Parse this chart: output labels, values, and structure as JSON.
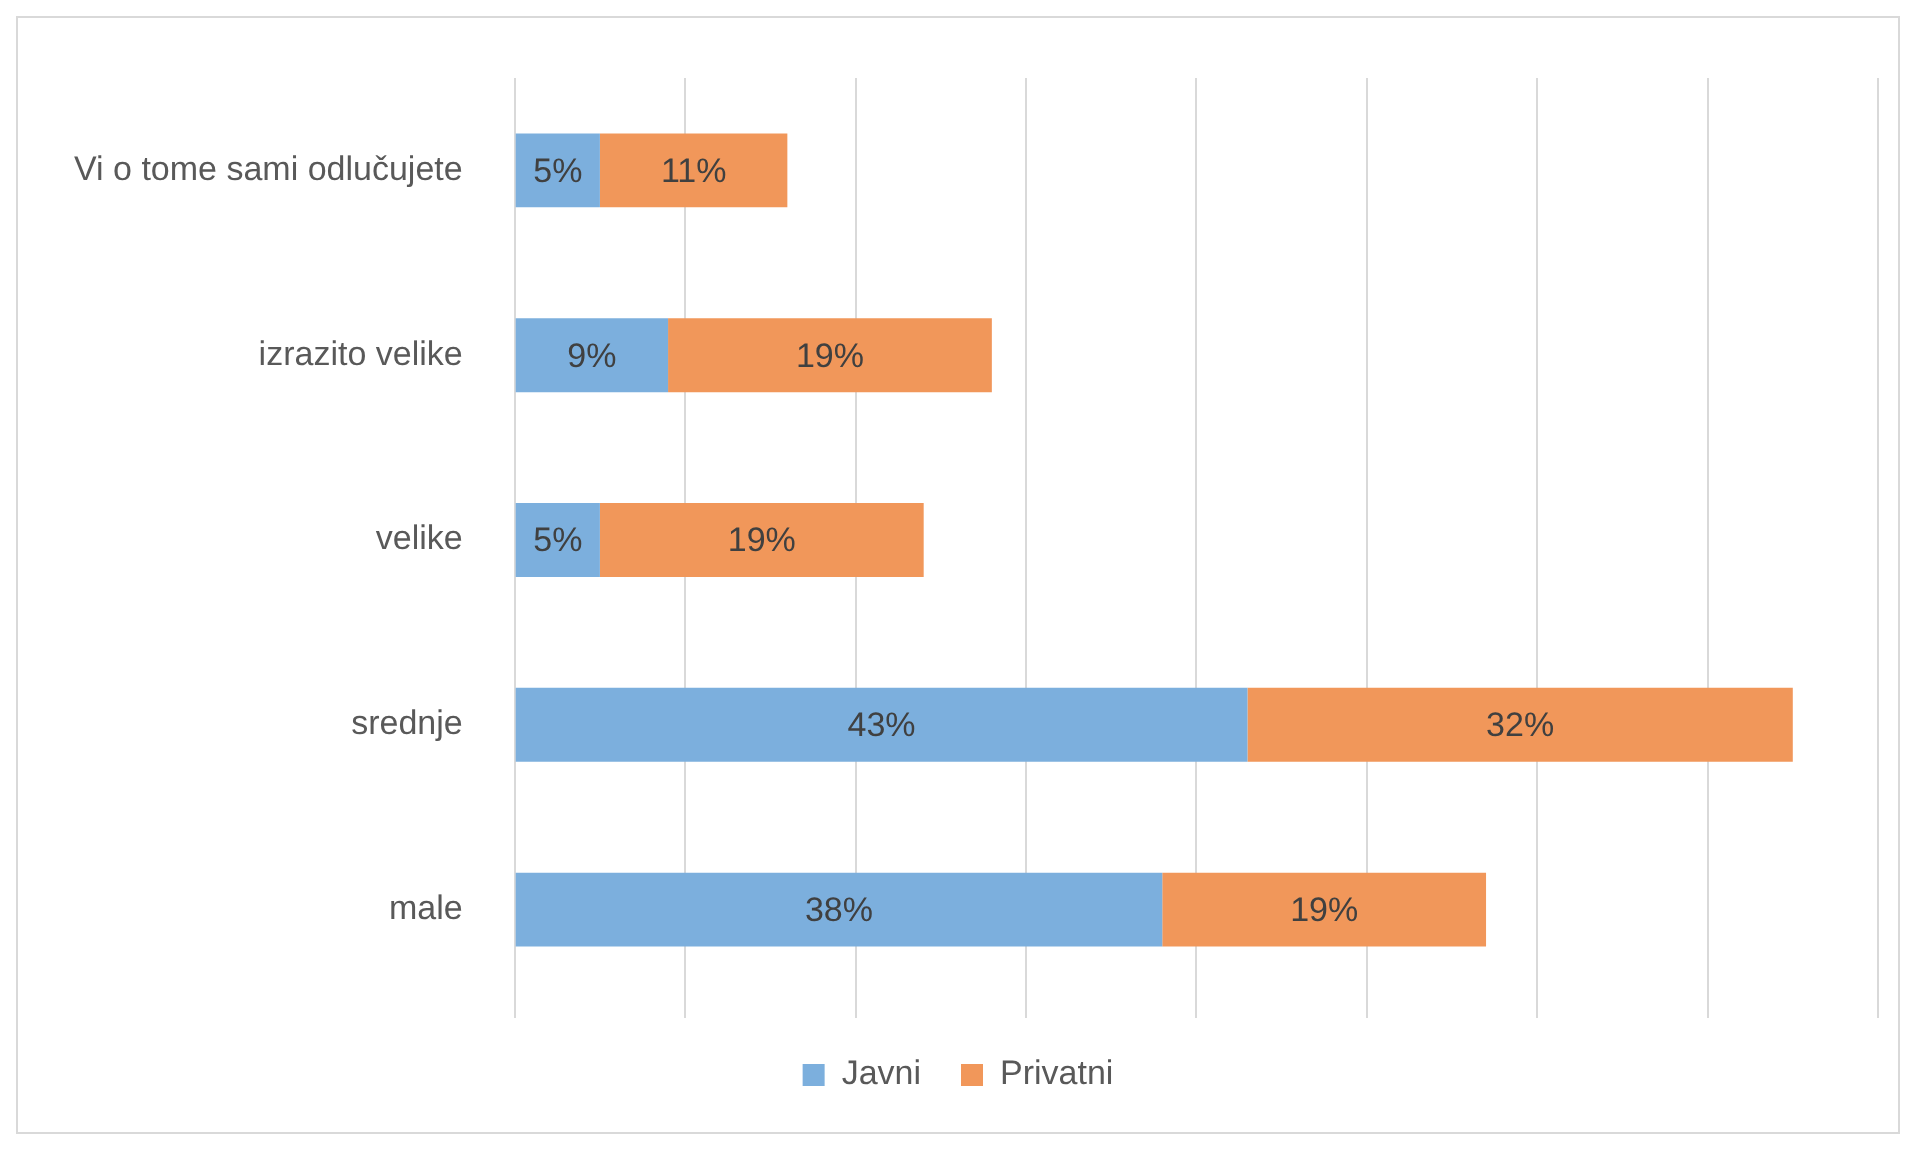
{
  "chart_data": {
    "type": "bar",
    "orientation": "horizontal",
    "stacked": true,
    "categories": [
      "Vi o tome sami odlučujete",
      "izrazito velike",
      "velike",
      "srednje",
      "male"
    ],
    "series": [
      {
        "name": "Javni",
        "color": "#7cafdd",
        "values": [
          5,
          9,
          5,
          43,
          38
        ],
        "value_labels": [
          "5%",
          "9%",
          "5%",
          "43%",
          "38%"
        ]
      },
      {
        "name": "Privatni",
        "color": "#f1975a",
        "values": [
          11,
          19,
          19,
          32,
          19
        ],
        "value_labels": [
          "11%",
          "19%",
          "19%",
          "32%",
          "19%"
        ]
      }
    ],
    "xlim": [
      0,
      80
    ],
    "xticks": [
      {
        "value": 0,
        "label": null
      },
      {
        "value": 10,
        "label": null
      },
      {
        "value": 20,
        "label": null
      },
      {
        "value": 30,
        "label": null
      },
      {
        "value": 40,
        "label": null
      },
      {
        "value": 50,
        "label": null
      },
      {
        "value": 60,
        "label": null
      },
      {
        "value": 70,
        "label": null
      },
      {
        "value": 80,
        "label": null
      }
    ],
    "tick_labels": "y",
    "grid": "x",
    "legend": "bottom"
  }
}
